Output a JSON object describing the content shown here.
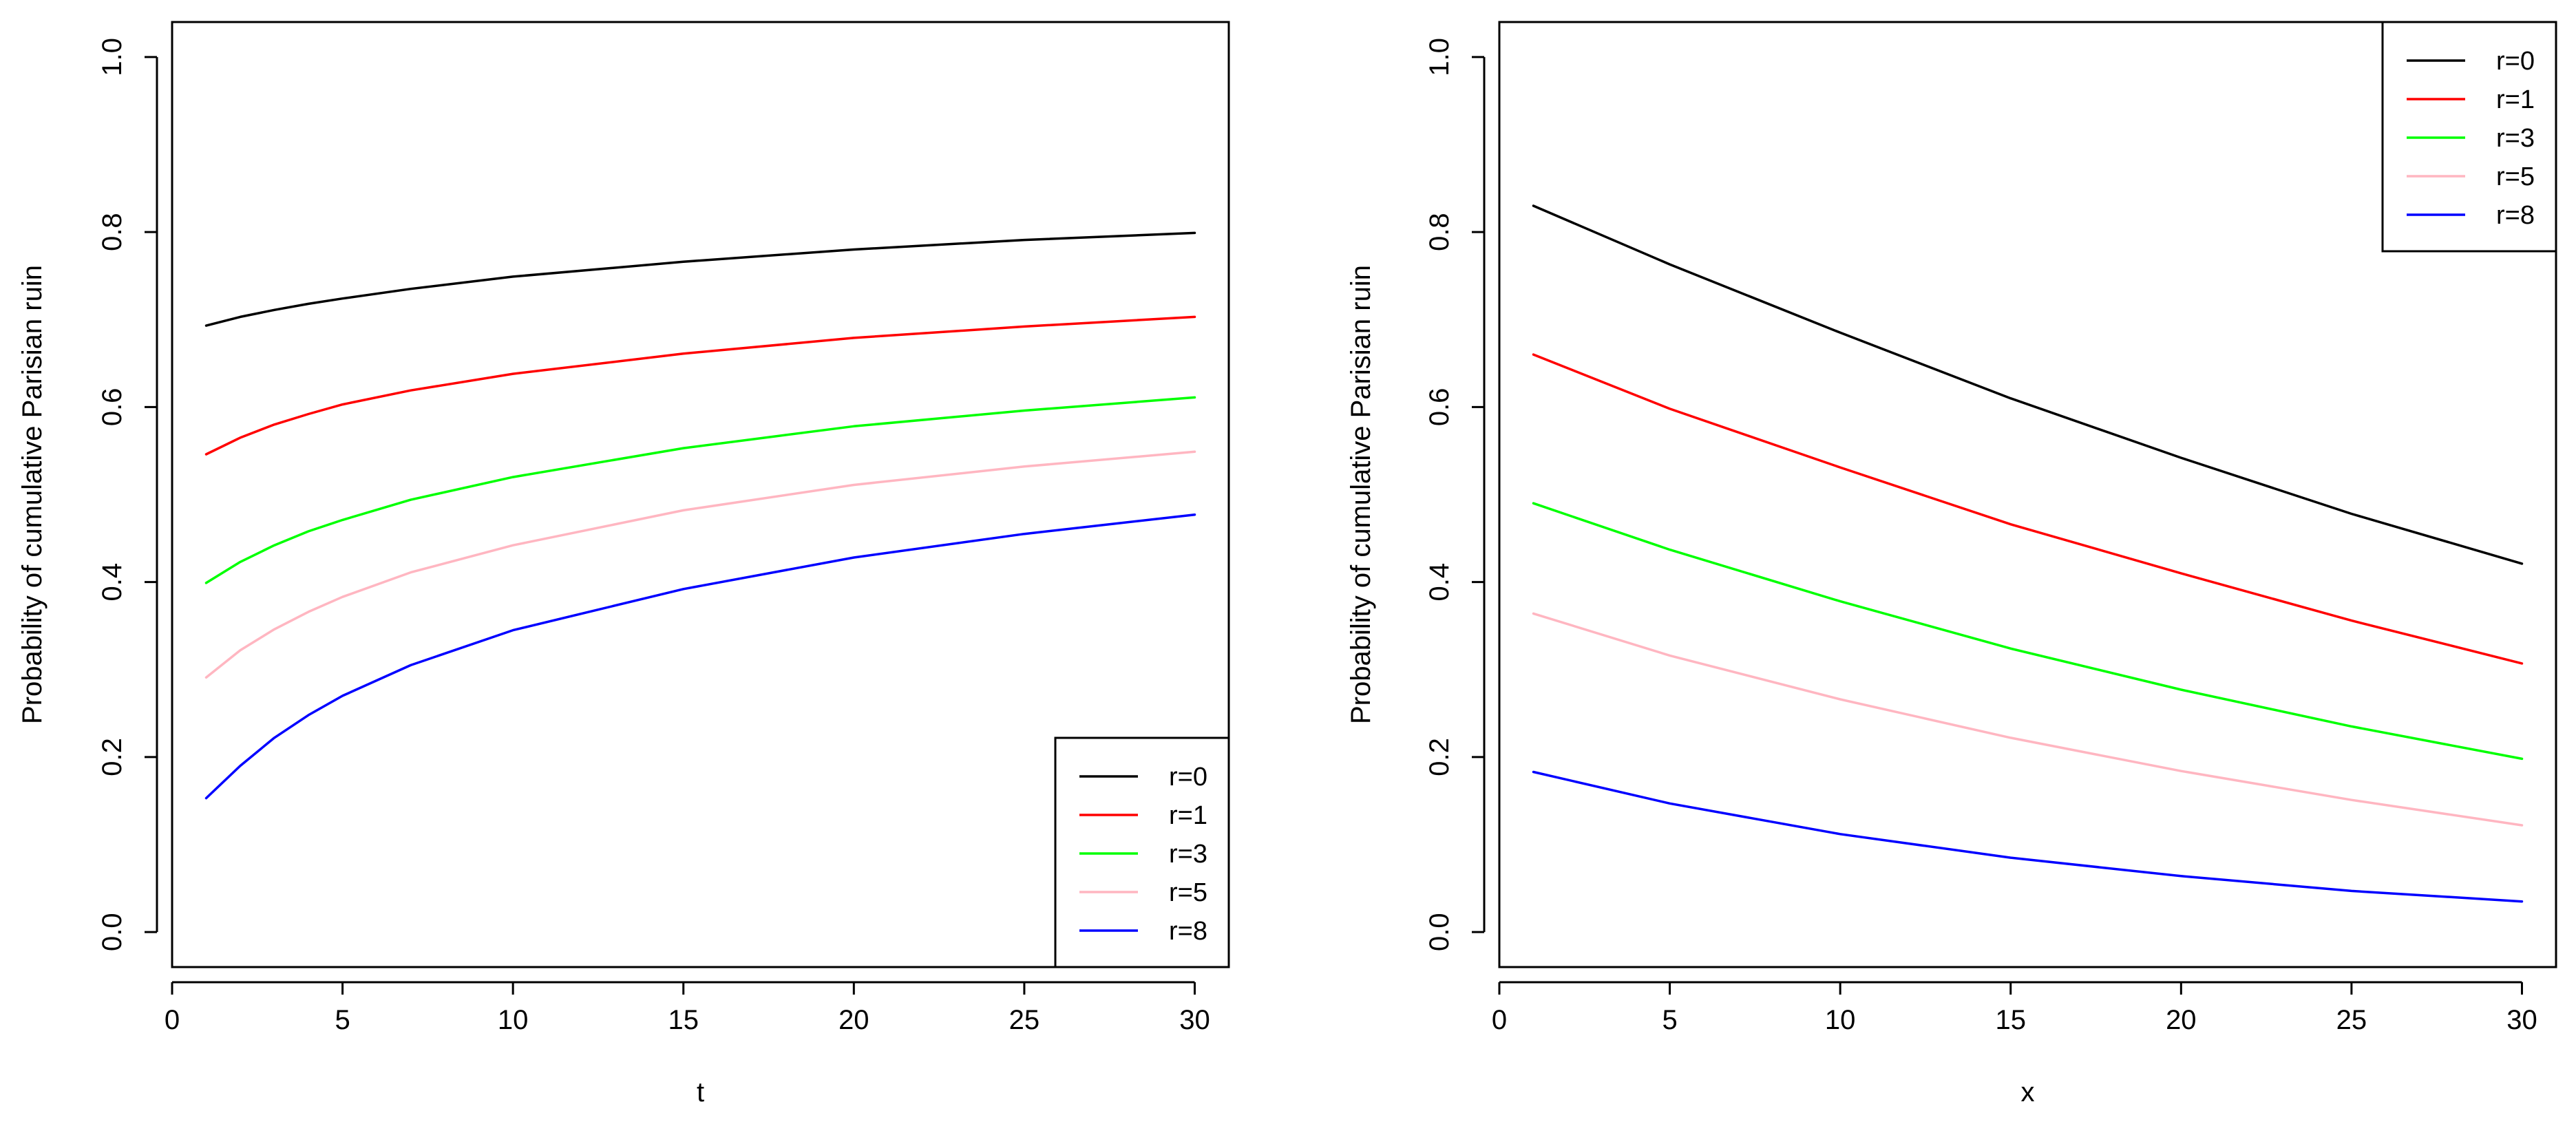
{
  "chart_data": [
    {
      "type": "line",
      "title": "",
      "xlabel": "t",
      "ylabel": "Probability of cumulative Parisian ruin",
      "xlim": [
        0,
        31
      ],
      "ylim": [
        -0.04,
        1.04
      ],
      "xticks": [
        0,
        5,
        10,
        15,
        20,
        25,
        30
      ],
      "xtick_labels": [
        "0",
        "5",
        "10",
        "15",
        "20",
        "25",
        "30"
      ],
      "yticks": [
        0.0,
        0.2,
        0.4,
        0.6,
        0.8,
        1.0
      ],
      "ytick_labels": [
        "0.0",
        "0.2",
        "0.4",
        "0.6",
        "0.8",
        "1.0"
      ],
      "grid": false,
      "legend_position": "bottom-right",
      "x": [
        1,
        2,
        3,
        4,
        5,
        7,
        10,
        15,
        20,
        25,
        30
      ],
      "series": [
        {
          "name": "r=0",
          "color": "#000000",
          "values": [
            0.693,
            0.703,
            0.711,
            0.718,
            0.724,
            0.735,
            0.749,
            0.766,
            0.78,
            0.791,
            0.799
          ]
        },
        {
          "name": "r=1",
          "color": "#ff0000",
          "values": [
            0.546,
            0.565,
            0.58,
            0.592,
            0.603,
            0.619,
            0.638,
            0.661,
            0.679,
            0.692,
            0.703
          ]
        },
        {
          "name": "r=3",
          "color": "#00ff00",
          "values": [
            0.399,
            0.423,
            0.442,
            0.458,
            0.471,
            0.494,
            0.52,
            0.553,
            0.578,
            0.596,
            0.611
          ]
        },
        {
          "name": "r=5",
          "color": "#ffb6c1",
          "values": [
            0.291,
            0.322,
            0.346,
            0.366,
            0.383,
            0.411,
            0.442,
            0.482,
            0.511,
            0.532,
            0.549
          ]
        },
        {
          "name": "r=8",
          "color": "#0000ff",
          "values": [
            0.153,
            0.19,
            0.222,
            0.248,
            0.27,
            0.305,
            0.345,
            0.392,
            0.428,
            0.455,
            0.477
          ]
        }
      ]
    },
    {
      "type": "line",
      "title": "",
      "xlabel": "x",
      "ylabel": "Probability of cumulative Parisian ruin",
      "xlim": [
        0,
        31
      ],
      "ylim": [
        -0.04,
        1.04
      ],
      "xticks": [
        0,
        5,
        10,
        15,
        20,
        25,
        30
      ],
      "xtick_labels": [
        "0",
        "5",
        "10",
        "15",
        "20",
        "25",
        "30"
      ],
      "yticks": [
        0.0,
        0.2,
        0.4,
        0.6,
        0.8,
        1.0
      ],
      "ytick_labels": [
        "0.0",
        "0.2",
        "0.4",
        "0.6",
        "0.8",
        "1.0"
      ],
      "grid": false,
      "legend_position": "top-right",
      "x": [
        1,
        5,
        10,
        15,
        20,
        25,
        30
      ],
      "series": [
        {
          "name": "r=0",
          "color": "#000000",
          "values": [
            0.83,
            0.763,
            0.685,
            0.61,
            0.542,
            0.478,
            0.421
          ]
        },
        {
          "name": "r=1",
          "color": "#ff0000",
          "values": [
            0.66,
            0.598,
            0.531,
            0.466,
            0.41,
            0.356,
            0.307
          ]
        },
        {
          "name": "r=3",
          "color": "#00ff00",
          "values": [
            0.49,
            0.437,
            0.378,
            0.324,
            0.277,
            0.235,
            0.198
          ]
        },
        {
          "name": "r=5",
          "color": "#ffb6c1",
          "values": [
            0.364,
            0.316,
            0.266,
            0.222,
            0.184,
            0.151,
            0.122
          ]
        },
        {
          "name": "r=8",
          "color": "#0000ff",
          "values": [
            0.183,
            0.147,
            0.112,
            0.085,
            0.064,
            0.047,
            0.035
          ]
        }
      ]
    }
  ]
}
